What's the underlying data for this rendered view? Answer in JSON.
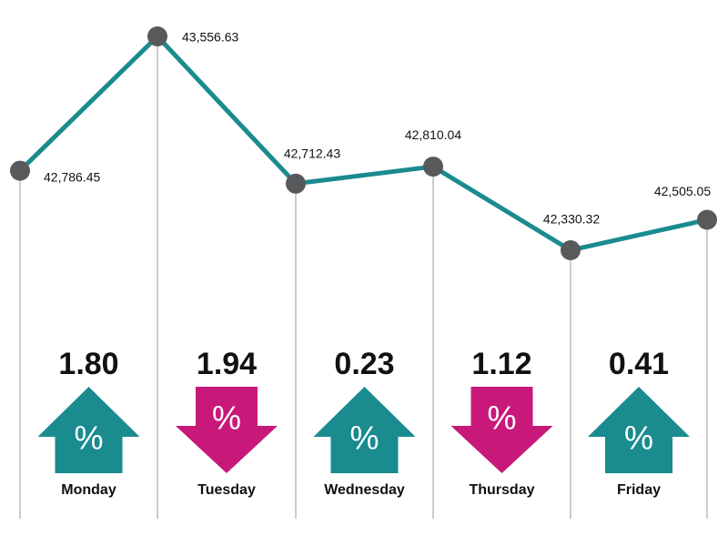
{
  "chart_data": {
    "type": "line",
    "categories": [
      null,
      null,
      null,
      null,
      null,
      null
    ],
    "values": [
      42786.45,
      43556.63,
      42712.43,
      42810.04,
      42330.32,
      42505.05
    ],
    "value_labels": [
      "42,786.45",
      "43,556.63",
      "42,712.43",
      "42,810.04",
      "42,330.32",
      "42,505.05"
    ],
    "color": "#1a8b8f",
    "marker_color": "#58595b",
    "changes": {
      "categories": [
        "Monday",
        "Tuesday",
        "Wednesday",
        "Thursday",
        "Friday"
      ],
      "values": [
        1.8,
        1.94,
        0.23,
        1.12,
        0.41
      ],
      "value_labels": [
        "1.80",
        "1.94",
        "0.23",
        "1.12",
        "0.41"
      ],
      "directions": [
        "up",
        "down",
        "up",
        "down",
        "up"
      ],
      "symbol": "%",
      "colors": {
        "up": "#1a8b8f",
        "down": "#c8197a"
      }
    }
  }
}
